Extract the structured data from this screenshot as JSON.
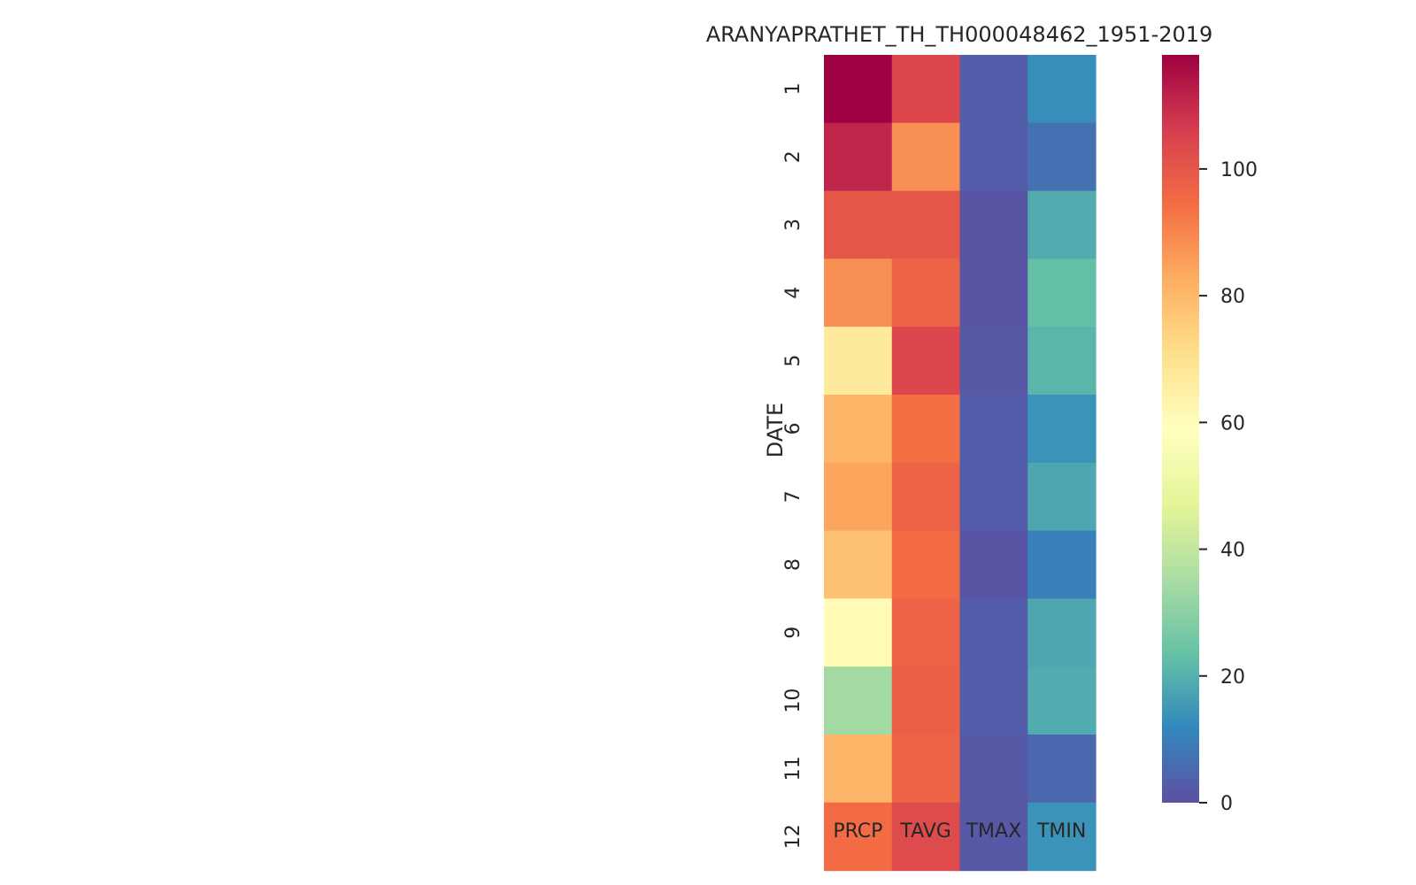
{
  "chart_data": {
    "type": "heatmap",
    "title": "ARANYAPRATHET_TH_TH000048462_1951-2019",
    "ylabel": "DATE",
    "xlabel": "",
    "columns": [
      "PRCP",
      "TAVG",
      "TMAX",
      "TMIN"
    ],
    "rows": [
      "1",
      "2",
      "3",
      "4",
      "5",
      "6",
      "7",
      "8",
      "9",
      "10",
      "11",
      "12"
    ],
    "values": [
      [
        118,
        104,
        3,
        13
      ],
      [
        111,
        88,
        3,
        7
      ],
      [
        100,
        100,
        1,
        19
      ],
      [
        88,
        97,
        1,
        23
      ],
      [
        67,
        104,
        2,
        21
      ],
      [
        81,
        94,
        3,
        14
      ],
      [
        84,
        97,
        3,
        18
      ],
      [
        78,
        95,
        1,
        10
      ],
      [
        61,
        97,
        3,
        18
      ],
      [
        34,
        98,
        3,
        19
      ],
      [
        81,
        97,
        2,
        5
      ],
      [
        95,
        103,
        2,
        14
      ]
    ],
    "colormap": "Spectral_r",
    "colorbar": {
      "vmin": 0,
      "vmax": 118,
      "ticks": [
        0,
        20,
        40,
        60,
        80,
        100
      ]
    },
    "grid": false,
    "legend": "right colorbar"
  }
}
